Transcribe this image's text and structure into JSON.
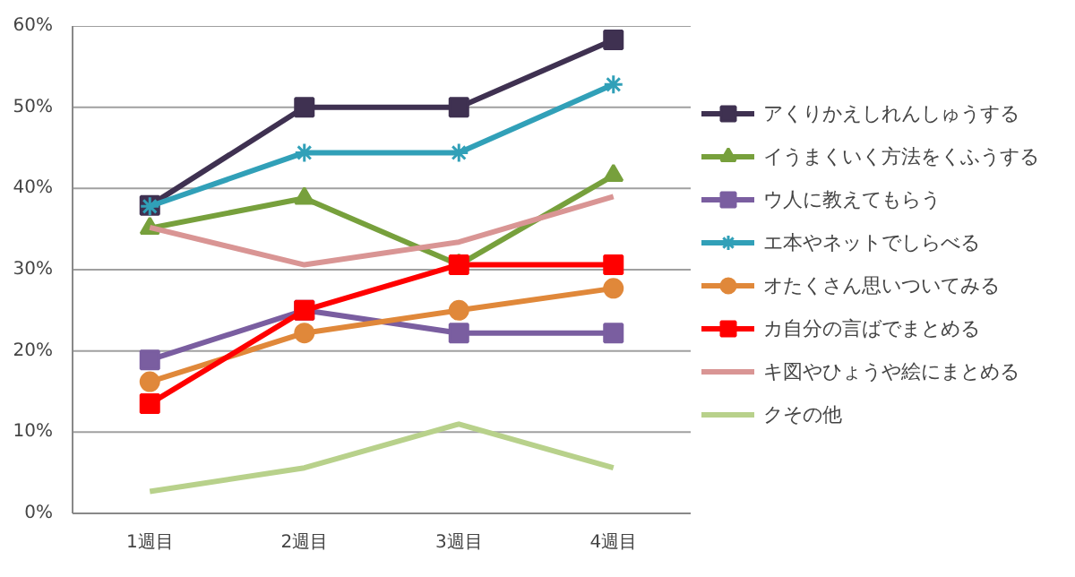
{
  "chart_data": {
    "type": "line",
    "categories": [
      "1週目",
      "2週目",
      "3週目",
      "4週目"
    ],
    "ylim": [
      0,
      60
    ],
    "yticks": [
      {
        "value": 0,
        "label": "0%"
      },
      {
        "value": 10,
        "label": "10%"
      },
      {
        "value": 20,
        "label": "20%"
      },
      {
        "value": 30,
        "label": "30%"
      },
      {
        "value": 40,
        "label": "40%"
      },
      {
        "value": 50,
        "label": "50%"
      },
      {
        "value": 60,
        "label": "60%"
      }
    ],
    "grid": "y",
    "legend": "right",
    "line_style": "solid",
    "series": [
      {
        "name": "アくりかえしれんしゅうする",
        "color": "#3f3151",
        "marker": "square",
        "values": [
          37.9,
          50,
          50,
          58.3
        ]
      },
      {
        "name": "イうまくいく方法をくふうする",
        "color": "#77a03c",
        "marker": "triangle",
        "values": [
          35.1,
          38.8,
          30.6,
          41.6
        ]
      },
      {
        "name": "ウ人に教えてもらう",
        "color": "#7a5ea0",
        "marker": "square",
        "values": [
          18.9,
          25,
          22.2,
          22.2
        ]
      },
      {
        "name": "エ本やネットでしらべる",
        "color": "#31a0b8",
        "marker": "cross",
        "values": [
          37.8,
          44.4,
          44.4,
          52.8
        ]
      },
      {
        "name": "オたくさん思いついてみる",
        "color": "#e0883a",
        "marker": "circle",
        "values": [
          16.2,
          22.2,
          25,
          27.7
        ]
      },
      {
        "name": "カ自分の言ばでまとめる",
        "color": "#ff0000",
        "marker": "square",
        "values": [
          13.5,
          25,
          30.6,
          30.6
        ]
      },
      {
        "name": "キ図やひょうや絵にまとめる",
        "color": "#d99594",
        "marker": "none",
        "values": [
          35.2,
          30.6,
          33.4,
          39
        ]
      },
      {
        "name": "クその他",
        "color": "#b8d18b",
        "marker": "none",
        "values": [
          2.7,
          5.6,
          11,
          5.6
        ]
      }
    ]
  }
}
